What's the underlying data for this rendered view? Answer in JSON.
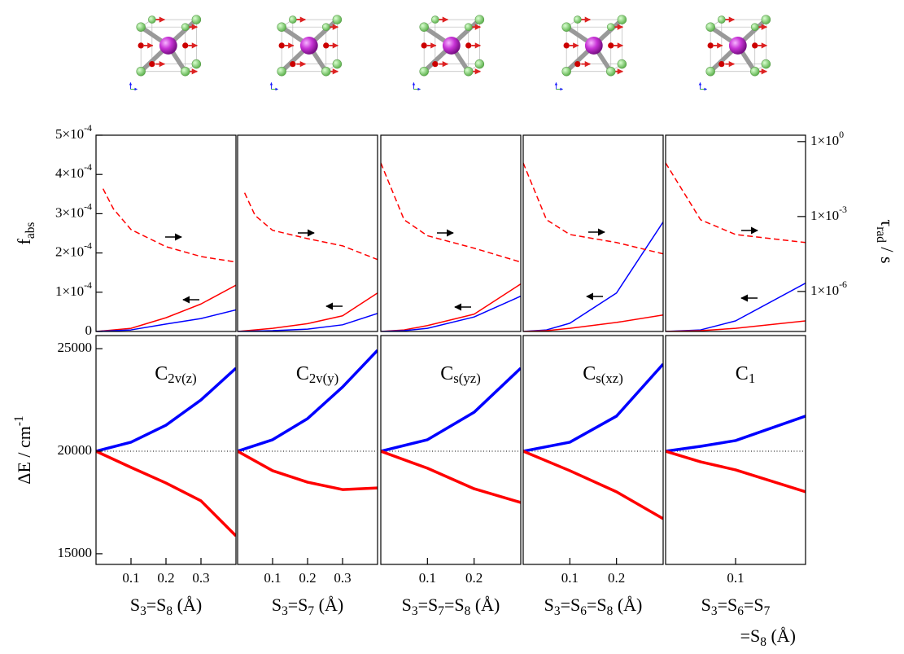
{
  "chart_data": [
    {
      "type": "line",
      "ylabel": {
        "text": "f",
        "sub": "abs"
      },
      "xlim": [
        0,
        0.4
      ],
      "x": [
        0,
        0.1,
        0.2,
        0.3,
        0.4
      ],
      "ylim": [
        0,
        0.0005
      ],
      "yticks": [
        0,
        {
          "value": 0.0001,
          "label": [
            "1×10",
            "-4"
          ]
        },
        {
          "value": 0.0002,
          "label": [
            "2×10",
            "-4"
          ]
        },
        {
          "value": 0.0003,
          "label": [
            "3×10",
            "-4"
          ]
        },
        {
          "value": 0.0004,
          "label": [
            "4×10",
            "-4"
          ]
        },
        {
          "value": 0.0005,
          "label": [
            "5×10",
            "-4"
          ]
        }
      ],
      "y2lim": [
        2.5e-08,
        1.8
      ],
      "y2scale": "log",
      "series": [
        {
          "color": "#ff0000",
          "values": [
            0,
            8e-06,
            3.5e-05,
            7e-05,
            0.000118
          ]
        },
        {
          "color": "#0000ff",
          "values": [
            0,
            4e-06,
            1.9e-05,
            3.3e-05,
            5.5e-05
          ]
        },
        {
          "color": "#ff0000",
          "dash": true,
          "axis": "y2",
          "x": [
            0.02,
            0.05,
            0.1,
            0.2,
            0.3,
            0.4
          ],
          "values": [
            0.013,
            0.002,
            0.0003,
            6.2e-05,
            2.5e-05,
            1.5e-05
          ]
        }
      ]
    },
    {
      "type": "line",
      "xlim": [
        0,
        0.4
      ],
      "x": [
        0,
        0.1,
        0.2,
        0.3,
        0.4
      ],
      "ylim": [
        0,
        0.0005
      ],
      "y2lim": [
        2.5e-08,
        1.8
      ],
      "y2scale": "log",
      "series": [
        {
          "color": "#ff0000",
          "values": [
            0,
            8e-06,
            2e-05,
            4e-05,
            9.8e-05
          ]
        },
        {
          "color": "#0000ff",
          "values": [
            0,
            2e-06,
            6e-06,
            1.7e-05,
            4.6e-05
          ]
        },
        {
          "color": "#ff0000",
          "dash": true,
          "axis": "y2",
          "x": [
            0.02,
            0.05,
            0.1,
            0.2,
            0.3,
            0.4
          ],
          "values": [
            0.0089,
            0.0011,
            0.00028,
            0.00013,
            6.7e-05,
            1.9e-05
          ]
        }
      ]
    },
    {
      "type": "line",
      "xlim": [
        0,
        0.3
      ],
      "x": [
        0,
        0.05,
        0.1,
        0.2,
        0.3
      ],
      "ylim": [
        0,
        0.0005
      ],
      "y2lim": [
        2.5e-08,
        1.8
      ],
      "y2scale": "log",
      "series": [
        {
          "color": "#ff0000",
          "values": [
            0,
            4e-06,
            1.5e-05,
            4.4e-05,
            0.000121
          ]
        },
        {
          "color": "#0000ff",
          "values": [
            0,
            2e-06,
            8e-06,
            3.7e-05,
            9e-05
          ]
        },
        {
          "color": "#ff0000",
          "dash": true,
          "axis": "y2",
          "values": [
            0.14,
            0.00074,
            0.00017,
            5.4e-05,
            1.5e-05
          ]
        }
      ]
    },
    {
      "type": "line",
      "xlim": [
        0,
        0.3
      ],
      "x": [
        0,
        0.05,
        0.1,
        0.2,
        0.3
      ],
      "ylim": [
        0,
        0.0005
      ],
      "y2lim": [
        2.5e-08,
        1.8
      ],
      "y2scale": "log",
      "series": [
        {
          "color": "#0000ff",
          "values": [
            0,
            4e-06,
            2.1e-05,
            9.8e-05,
            0.000279
          ]
        },
        {
          "color": "#ff0000",
          "values": [
            0,
            2e-06,
            8e-06,
            2.3e-05,
            4.2e-05
          ]
        },
        {
          "color": "#ff0000",
          "dash": true,
          "axis": "y2",
          "values": [
            0.14,
            0.00074,
            0.00019,
            9.1e-05,
            3.2e-05
          ]
        }
      ]
    },
    {
      "type": "line",
      "xlim": [
        0,
        0.2
      ],
      "x": [
        0,
        0.05,
        0.1,
        0.2
      ],
      "ylim": [
        0,
        0.0005
      ],
      "y2lim": [
        2.5e-08,
        1.8
      ],
      "y2scale": "log",
      "y2ticks": [
        {
          "value": 1e-06,
          "label": [
            "1×10",
            "-6"
          ]
        },
        {
          "value": 0.001,
          "label": [
            "1×10",
            "-3"
          ]
        },
        {
          "value": 1,
          "label": [
            "1×10",
            "0"
          ]
        }
      ],
      "y2label": {
        "text": "τ",
        "sub": "rad",
        "after": " / s"
      },
      "series": [
        {
          "color": "#0000ff",
          "values": [
            0,
            4e-06,
            2.7e-05,
            0.000123
          ]
        },
        {
          "color": "#ff0000",
          "values": [
            0,
            2e-06,
            8e-06,
            2.7e-05
          ]
        },
        {
          "color": "#ff0000",
          "dash": true,
          "axis": "y2",
          "values": [
            0.14,
            0.00074,
            0.00019,
            9.1e-05
          ]
        }
      ]
    },
    {
      "type": "line",
      "title": [
        "C",
        "2v(z)"
      ],
      "ylabel": {
        "text": "ΔE / cm",
        "sup": "-1"
      },
      "xlim": [
        0,
        0.4
      ],
      "x": [
        0,
        0.1,
        0.2,
        0.3,
        0.4
      ],
      "xticks": [
        0.1,
        0.2,
        0.3
      ],
      "ylim": [
        14480,
        25640
      ],
      "yticks": [
        15000,
        20000,
        25000
      ],
      "hline": 20000,
      "xlabel": [
        [
          "S",
          "3",
          "=S",
          "8",
          " (Å)"
        ]
      ],
      "series": [
        {
          "color": "#0000ff",
          "values": [
            20000,
            20440,
            21270,
            22500,
            24050
          ]
        },
        {
          "color": "#ff0000",
          "values": [
            20000,
            19210,
            18450,
            17580,
            15870
          ]
        }
      ]
    },
    {
      "type": "line",
      "title": [
        "C",
        "2v(y)"
      ],
      "xlim": [
        0,
        0.4
      ],
      "x": [
        0,
        0.1,
        0.2,
        0.3,
        0.4
      ],
      "xticks": [
        0.1,
        0.2,
        0.3
      ],
      "ylim": [
        14480,
        25640
      ],
      "hline": 20000,
      "xlabel": [
        [
          "S",
          "3",
          "=S",
          "7",
          " (Å)"
        ]
      ],
      "series": [
        {
          "color": "#0000ff",
          "values": [
            20000,
            20560,
            21590,
            23130,
            24920
          ]
        },
        {
          "color": "#ff0000",
          "values": [
            20000,
            19050,
            18490,
            18130,
            18210
          ]
        }
      ]
    },
    {
      "type": "line",
      "title": [
        "C",
        "s(yz)"
      ],
      "xlim": [
        0,
        0.3
      ],
      "x": [
        0,
        0.1,
        0.2,
        0.3
      ],
      "xticks": [
        0.1,
        0.2
      ],
      "ylim": [
        14480,
        25640
      ],
      "hline": 20000,
      "xlabel": [
        [
          "S",
          "3",
          "=S",
          "7",
          "=S",
          "8",
          " (Å)"
        ]
      ],
      "series": [
        {
          "color": "#0000ff",
          "values": [
            20000,
            20560,
            21900,
            24050
          ]
        },
        {
          "color": "#ff0000",
          "values": [
            20000,
            19170,
            18170,
            17500
          ]
        }
      ]
    },
    {
      "type": "line",
      "title": [
        "C",
        "s(xz)"
      ],
      "xlim": [
        0,
        0.3
      ],
      "x": [
        0,
        0.1,
        0.2,
        0.3
      ],
      "xticks": [
        0.1,
        0.2
      ],
      "ylim": [
        14480,
        25640
      ],
      "hline": 20000,
      "xlabel": [
        [
          "S",
          "3",
          "=S",
          "6",
          "=S",
          "8",
          " (Å)"
        ]
      ],
      "series": [
        {
          "color": "#0000ff",
          "values": [
            20000,
            20440,
            21710,
            24250
          ]
        },
        {
          "color": "#ff0000",
          "values": [
            20000,
            19050,
            18020,
            16710
          ]
        }
      ]
    },
    {
      "type": "line",
      "title": [
        "C",
        "1"
      ],
      "xlim": [
        0,
        0.2
      ],
      "x": [
        0,
        0.05,
        0.1,
        0.2
      ],
      "xticks": [
        0.1
      ],
      "ylim": [
        14480,
        25640
      ],
      "hline": 20000,
      "xlabel": [
        [
          "S",
          "3",
          "=S",
          "6",
          "=S",
          "7"
        ],
        [
          "=S",
          "8",
          " (Å)"
        ]
      ],
      "series": [
        {
          "color": "#0000ff",
          "values": [
            20000,
            20240,
            20520,
            21710
          ]
        },
        {
          "color": "#ff0000",
          "values": [
            20000,
            19480,
            19090,
            18020
          ]
        }
      ]
    }
  ]
}
